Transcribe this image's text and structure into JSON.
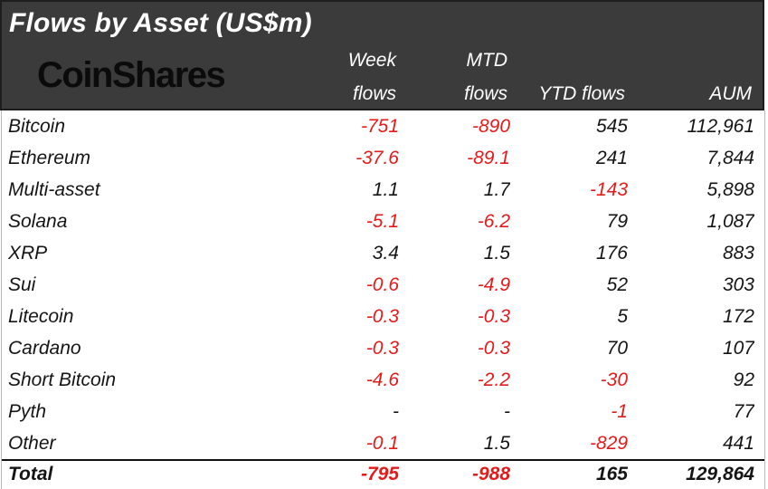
{
  "header": {
    "title": "Flows by Asset (US$m)",
    "logo": "CoinShares",
    "columns": [
      {
        "line1": "Week",
        "line2": "flows"
      },
      {
        "line1": "MTD",
        "line2": "flows"
      },
      {
        "line1": "",
        "line2": "YTD flows"
      },
      {
        "line1": "",
        "line2": "AUM"
      }
    ]
  },
  "colors": {
    "header_bg": "#3b3b3b",
    "negative_red": "#e51a1a",
    "body_text": "#151515",
    "header_text": "#ffffff",
    "logo_text": "#0b0b0b"
  },
  "table": {
    "rows": [
      {
        "asset": "Bitcoin",
        "week": "-751",
        "mtd": "-890",
        "ytd": "545",
        "aum": "112,961"
      },
      {
        "asset": "Ethereum",
        "week": "-37.6",
        "mtd": "-89.1",
        "ytd": "241",
        "aum": "7,844"
      },
      {
        "asset": "Multi-asset",
        "week": "1.1",
        "mtd": "1.7",
        "ytd": "-143",
        "aum": "5,898"
      },
      {
        "asset": "Solana",
        "week": "-5.1",
        "mtd": "-6.2",
        "ytd": "79",
        "aum": "1,087"
      },
      {
        "asset": "XRP",
        "week": "3.4",
        "mtd": "1.5",
        "ytd": "176",
        "aum": "883"
      },
      {
        "asset": "Sui",
        "week": "-0.6",
        "mtd": "-4.9",
        "ytd": "52",
        "aum": "303"
      },
      {
        "asset": "Litecoin",
        "week": "-0.3",
        "mtd": "-0.3",
        "ytd": "5",
        "aum": "172"
      },
      {
        "asset": "Cardano",
        "week": "-0.3",
        "mtd": "-0.3",
        "ytd": "70",
        "aum": "107"
      },
      {
        "asset": "Short Bitcoin",
        "week": "-4.6",
        "mtd": "-2.2",
        "ytd": "-30",
        "aum": "92"
      },
      {
        "asset": "Pyth",
        "week": "-",
        "mtd": "-",
        "ytd": "-1",
        "aum": "77"
      },
      {
        "asset": "Other",
        "week": "-0.1",
        "mtd": "1.5",
        "ytd": "-829",
        "aum": "441"
      }
    ],
    "total": {
      "asset": "Total",
      "week": "-795",
      "mtd": "-988",
      "ytd": "165",
      "aum": "129,864"
    }
  }
}
